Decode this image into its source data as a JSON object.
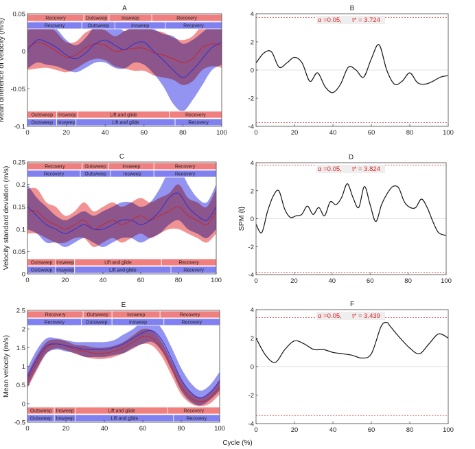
{
  "shared_xlabel": "Cycle (%)",
  "colors": {
    "red_band": "#f08080",
    "blue_band": "#8080f0",
    "overlap": "#a0306e",
    "red_line": "#c82828",
    "blue_line": "#3030d0",
    "spm_line": "#111111",
    "threshold": "#e04040"
  },
  "chart_data": [
    {
      "type": "line",
      "panel": "A",
      "title": "A",
      "ylabel": "Mean difference of velocity (m/s)",
      "xlim": [
        0,
        100
      ],
      "ylim": [
        -0.1,
        0.05
      ],
      "xticks": [
        0,
        20,
        40,
        60,
        80,
        100
      ],
      "xtick_labels": [
        "0",
        "20",
        "40",
        "60",
        "80",
        "100"
      ],
      "yticks": [
        -0.1,
        -0.05,
        0,
        0.05
      ],
      "ytick_labels": [
        "-0.1",
        "-0.05",
        "0",
        "0.05"
      ],
      "zero_line": true,
      "x": [
        0,
        5,
        10,
        15,
        20,
        25,
        30,
        35,
        40,
        45,
        50,
        55,
        60,
        65,
        70,
        75,
        80,
        85,
        90,
        95,
        100
      ],
      "series": [
        {
          "name": "red",
          "mean": [
            0.005,
            0.012,
            0.008,
            0.0,
            -0.008,
            -0.005,
            0.005,
            0.01,
            0.008,
            0.0,
            0.002,
            0.004,
            0.004,
            -0.002,
            -0.005,
            -0.01,
            -0.015,
            -0.01,
            0.005,
            0.01,
            0.008
          ],
          "sd": [
            0.03,
            0.035,
            0.03,
            0.025,
            0.02,
            0.018,
            0.02,
            0.02,
            0.02,
            0.02,
            0.025,
            0.03,
            0.03,
            0.03,
            0.03,
            0.028,
            0.03,
            0.03,
            0.03,
            0.03,
            0.03
          ]
        },
        {
          "name": "blue",
          "mean": [
            0.002,
            0.015,
            0.012,
            0.005,
            -0.005,
            -0.01,
            -0.002,
            0.01,
            0.015,
            0.008,
            0.002,
            0.01,
            0.012,
            0.0,
            -0.012,
            -0.025,
            -0.035,
            -0.025,
            -0.01,
            0.005,
            0.012
          ],
          "sd": [
            0.025,
            0.03,
            0.03,
            0.025,
            0.02,
            0.018,
            0.02,
            0.025,
            0.03,
            0.03,
            0.025,
            0.025,
            0.03,
            0.03,
            0.035,
            0.045,
            0.045,
            0.04,
            0.035,
            0.03,
            0.03
          ]
        }
      ],
      "phase_bars_top": [
        {
          "color": "red",
          "segments": [
            {
              "label": "Recovery",
              "from": 0,
              "to": 29
            },
            {
              "label": "Outsweep",
              "from": 29,
              "to": 42
            },
            {
              "label": "Insweep",
              "from": 42,
              "to": 64
            },
            {
              "label": "Recovery",
              "from": 64,
              "to": 100
            }
          ]
        },
        {
          "color": "blue",
          "segments": [
            {
              "label": "Recovery",
              "from": 0,
              "to": 28
            },
            {
              "label": "Outsweep",
              "from": 28,
              "to": 45
            },
            {
              "label": "Insweep",
              "from": 45,
              "to": 71
            },
            {
              "label": "Recovery",
              "from": 71,
              "to": 100
            }
          ]
        }
      ],
      "phase_bars_bottom": [
        {
          "color": "red",
          "segments": [
            {
              "label": "Outsweep",
              "from": 0,
              "to": 15
            },
            {
              "label": "Insweep",
              "from": 15,
              "to": 26
            },
            {
              "label": "Lift and glide",
              "from": 26,
              "to": 73
            },
            {
              "label": "Recovery",
              "from": 73,
              "to": 100
            }
          ]
        },
        {
          "color": "blue",
          "segments": [
            {
              "label": "Outsweep",
              "from": 0,
              "to": 15
            },
            {
              "label": "Insweep",
              "from": 15,
              "to": 25
            },
            {
              "label": "Lift and glide",
              "from": 25,
              "to": 76
            },
            {
              "label": "Recovery",
              "from": 76,
              "to": 100
            }
          ]
        }
      ]
    },
    {
      "type": "line",
      "panel": "B",
      "title": "B",
      "ylabel": "",
      "xlim": [
        0,
        100
      ],
      "ylim": [
        -4,
        4
      ],
      "xticks": [
        0,
        20,
        40,
        60,
        80,
        100
      ],
      "xtick_labels": [
        "0",
        "20",
        "40",
        "60",
        "80",
        "100"
      ],
      "yticks": [
        -4,
        -2,
        0,
        2,
        4
      ],
      "ytick_labels": [
        "-4",
        "-2",
        "0",
        "2",
        "4"
      ],
      "zero_line": true,
      "threshold": 3.724,
      "annotation": {
        "alpha": "α  =0.05,",
        "tstar": "t* = 3.724"
      },
      "x": [
        0,
        4,
        8,
        12,
        16,
        20,
        24,
        28,
        32,
        36,
        40,
        44,
        48,
        52,
        56,
        60,
        64,
        68,
        72,
        76,
        80,
        84,
        88,
        92,
        96,
        100
      ],
      "values": [
        0.5,
        1.2,
        1.3,
        0.2,
        0.5,
        0.9,
        0.5,
        -0.8,
        -0.2,
        -1.2,
        -1.6,
        -1.0,
        0.2,
        0.0,
        -0.5,
        0.8,
        1.8,
        0.0,
        -1.0,
        -0.8,
        -0.2,
        -0.9,
        -1.0,
        -0.8,
        -0.5,
        -0.4
      ]
    },
    {
      "type": "line",
      "panel": "C",
      "title": "C",
      "ylabel": "Velocity standard deviation (m/s)",
      "xlim": [
        0,
        100
      ],
      "ylim": [
        0,
        0.25
      ],
      "xticks": [
        0,
        20,
        40,
        60,
        80,
        100
      ],
      "xtick_labels": [
        "0",
        "20",
        "40",
        "60",
        "80",
        "100"
      ],
      "yticks": [
        0,
        0.05,
        0.1,
        0.15,
        0.2,
        0.25
      ],
      "ytick_labels": [
        "0",
        "0.05",
        "0.1",
        "0.15",
        "0.2",
        "0.25"
      ],
      "zero_line": false,
      "x": [
        0,
        5,
        10,
        15,
        20,
        25,
        30,
        35,
        40,
        45,
        50,
        55,
        60,
        65,
        70,
        75,
        80,
        85,
        90,
        95,
        100
      ],
      "series": [
        {
          "name": "red",
          "mean": [
            0.14,
            0.14,
            0.12,
            0.11,
            0.1,
            0.11,
            0.12,
            0.1,
            0.11,
            0.12,
            0.11,
            0.12,
            0.13,
            0.12,
            0.13,
            0.14,
            0.15,
            0.13,
            0.12,
            0.11,
            0.14
          ],
          "sd": [
            0.05,
            0.05,
            0.04,
            0.04,
            0.03,
            0.03,
            0.04,
            0.04,
            0.04,
            0.04,
            0.04,
            0.04,
            0.04,
            0.04,
            0.04,
            0.04,
            0.05,
            0.04,
            0.04,
            0.04,
            0.05
          ]
        },
        {
          "name": "blue",
          "mean": [
            0.15,
            0.13,
            0.11,
            0.1,
            0.09,
            0.1,
            0.11,
            0.1,
            0.1,
            0.11,
            0.12,
            0.12,
            0.11,
            0.12,
            0.14,
            0.17,
            0.18,
            0.15,
            0.13,
            0.12,
            0.15
          ],
          "sd": [
            0.05,
            0.04,
            0.04,
            0.03,
            0.03,
            0.03,
            0.03,
            0.03,
            0.04,
            0.04,
            0.04,
            0.04,
            0.04,
            0.04,
            0.05,
            0.06,
            0.06,
            0.05,
            0.04,
            0.04,
            0.05
          ]
        }
      ],
      "phase_bars_top": [
        {
          "color": "red",
          "segments": [
            {
              "label": "Recovery",
              "from": 0,
              "to": 29
            },
            {
              "label": "Outsweep",
              "from": 29,
              "to": 43
            },
            {
              "label": "Insweep",
              "from": 43,
              "to": 67
            },
            {
              "label": "Recovery",
              "from": 67,
              "to": 100
            }
          ]
        },
        {
          "color": "blue",
          "segments": [
            {
              "label": "Recovery",
              "from": 0,
              "to": 28
            },
            {
              "label": "Outsweep",
              "from": 28,
              "to": 44
            },
            {
              "label": "Insweep",
              "from": 44,
              "to": 67
            },
            {
              "label": "Recovery",
              "from": 67,
              "to": 100
            }
          ]
        }
      ],
      "phase_bars_bottom": [
        {
          "color": "red",
          "segments": [
            {
              "label": "Outsweep",
              "from": 0,
              "to": 15
            },
            {
              "label": "Insweep",
              "from": 15,
              "to": 25
            },
            {
              "label": "Lift and glide",
              "from": 25,
              "to": 71
            },
            {
              "label": "Recovery",
              "from": 71,
              "to": 100
            }
          ]
        },
        {
          "color": "blue",
          "segments": [
            {
              "label": "Outsweep",
              "from": 0,
              "to": 15
            },
            {
              "label": "Insweep",
              "from": 15,
              "to": 25
            },
            {
              "label": "Lift and glide",
              "from": 25,
              "to": 76
            },
            {
              "label": "Recovery",
              "from": 76,
              "to": 100
            }
          ]
        }
      ]
    },
    {
      "type": "line",
      "panel": "D",
      "title": "D",
      "ylabel": "SPM {t}",
      "xlim": [
        0,
        100
      ],
      "ylim": [
        -4,
        4
      ],
      "xticks": [
        0,
        20,
        40,
        60,
        80,
        100
      ],
      "xtick_labels": [
        "0",
        "20",
        "40",
        "60",
        "80",
        "100"
      ],
      "yticks": [
        -4,
        -2,
        0,
        2,
        4
      ],
      "ytick_labels": [
        "-4",
        "-2",
        "0",
        "2",
        "4"
      ],
      "zero_line": true,
      "threshold": 3.824,
      "annotation": {
        "alpha": "α  =0.05,",
        "tstar": "t* = 3.824"
      },
      "x": [
        0,
        3,
        6,
        9,
        12,
        15,
        18,
        21,
        24,
        27,
        30,
        33,
        36,
        39,
        42,
        45,
        48,
        51,
        54,
        57,
        60,
        63,
        66,
        69,
        72,
        75,
        78,
        81,
        84,
        87,
        90,
        93,
        96,
        100
      ],
      "values": [
        -0.4,
        -1.0,
        0.5,
        1.6,
        2.0,
        0.7,
        0.1,
        0.2,
        0.3,
        0.9,
        0.3,
        0.8,
        0.2,
        1.2,
        1.0,
        1.5,
        2.5,
        1.5,
        0.8,
        2.3,
        1.0,
        -0.2,
        1.0,
        1.8,
        2.3,
        2.2,
        1.2,
        0.8,
        0.8,
        1.4,
        0.8,
        -0.2,
        -1.0,
        -1.2
      ]
    },
    {
      "type": "line",
      "panel": "E",
      "title": "E",
      "ylabel": "Mean velocity (m/s)",
      "xlim": [
        0,
        100
      ],
      "ylim": [
        -0.5,
        2.5
      ],
      "xticks": [
        0,
        20,
        40,
        60,
        80,
        100
      ],
      "xtick_labels": [
        "0",
        "20",
        "40",
        "60",
        "80",
        "100"
      ],
      "yticks": [
        -0.5,
        0,
        0.5,
        1,
        1.5,
        2,
        2.5
      ],
      "ytick_labels": [
        "-0.5",
        "0",
        "0.5",
        "1",
        "1.5",
        "2",
        "2.5"
      ],
      "zero_line": false,
      "x": [
        0,
        5,
        10,
        15,
        20,
        25,
        30,
        35,
        40,
        45,
        50,
        55,
        60,
        65,
        70,
        75,
        80,
        85,
        90,
        95,
        100
      ],
      "series": [
        {
          "name": "red",
          "mean": [
            0.6,
            1.1,
            1.5,
            1.6,
            1.55,
            1.45,
            1.4,
            1.35,
            1.35,
            1.4,
            1.5,
            1.65,
            1.8,
            1.75,
            1.45,
            0.95,
            0.45,
            0.15,
            0.05,
            0.15,
            0.45
          ],
          "sd": [
            0.2,
            0.2,
            0.15,
            0.12,
            0.12,
            0.12,
            0.15,
            0.15,
            0.15,
            0.15,
            0.15,
            0.18,
            0.2,
            0.2,
            0.2,
            0.2,
            0.2,
            0.15,
            0.12,
            0.15,
            0.2
          ]
        },
        {
          "name": "blue",
          "mean": [
            0.7,
            1.2,
            1.55,
            1.6,
            1.55,
            1.5,
            1.45,
            1.45,
            1.45,
            1.5,
            1.6,
            1.75,
            1.9,
            1.95,
            1.7,
            1.2,
            0.65,
            0.3,
            0.15,
            0.3,
            0.6
          ],
          "sd": [
            0.25,
            0.25,
            0.2,
            0.15,
            0.15,
            0.15,
            0.2,
            0.2,
            0.2,
            0.2,
            0.25,
            0.25,
            0.3,
            0.3,
            0.3,
            0.3,
            0.3,
            0.25,
            0.2,
            0.2,
            0.25
          ]
        }
      ],
      "phase_bars_top": [
        {
          "color": "red",
          "segments": [
            {
              "label": "Recovery",
              "from": 0,
              "to": 29
            },
            {
              "label": "Outsweep",
              "from": 29,
              "to": 44
            },
            {
              "label": "Insweep",
              "from": 44,
              "to": 69
            },
            {
              "label": "Recovery",
              "from": 69,
              "to": 100
            }
          ]
        },
        {
          "color": "blue",
          "segments": [
            {
              "label": "Recovery",
              "from": 0,
              "to": 28
            },
            {
              "label": "Outsweep",
              "from": 28,
              "to": 44
            },
            {
              "label": "Insweep",
              "from": 44,
              "to": 71
            },
            {
              "label": "Recovery",
              "from": 71,
              "to": 100
            }
          ]
        }
      ],
      "phase_bars_bottom": [
        {
          "color": "red",
          "segments": [
            {
              "label": "Outsweep",
              "from": 0,
              "to": 14
            },
            {
              "label": "Insweep",
              "from": 14,
              "to": 25
            },
            {
              "label": "Lift and glide",
              "from": 25,
              "to": 73
            },
            {
              "label": "Recovery",
              "from": 73,
              "to": 100
            }
          ]
        },
        {
          "color": "blue",
          "segments": [
            {
              "label": "Outsweep",
              "from": 0,
              "to": 14
            },
            {
              "label": "Insweep",
              "from": 14,
              "to": 25
            },
            {
              "label": "Lift and glide",
              "from": 25,
              "to": 76
            },
            {
              "label": "Recovery",
              "from": 76,
              "to": 100
            }
          ]
        }
      ]
    },
    {
      "type": "line",
      "panel": "F",
      "title": "F",
      "ylabel": "",
      "xlim": [
        0,
        100
      ],
      "ylim": [
        -4,
        4
      ],
      "xticks": [
        0,
        20,
        40,
        60,
        80,
        100
      ],
      "xtick_labels": [
        "0",
        "20",
        "40",
        "60",
        "80",
        "100"
      ],
      "yticks": [
        -4,
        -2,
        0,
        2,
        4
      ],
      "ytick_labels": [
        "-4",
        "-2",
        "0",
        "2",
        "4"
      ],
      "zero_line": true,
      "threshold": 3.439,
      "annotation": {
        "alpha": "α  =0.05,",
        "tstar": "t* = 3.439"
      },
      "x": [
        0,
        5,
        10,
        15,
        20,
        25,
        30,
        35,
        40,
        45,
        50,
        55,
        60,
        65,
        68,
        70,
        75,
        80,
        85,
        90,
        95,
        100
      ],
      "values": [
        2.0,
        0.8,
        0.3,
        1.2,
        1.8,
        1.6,
        1.2,
        1.2,
        1.0,
        0.9,
        0.8,
        0.6,
        0.9,
        2.8,
        3.1,
        2.8,
        2.0,
        1.3,
        0.9,
        1.6,
        2.3,
        2.0
      ]
    }
  ]
}
